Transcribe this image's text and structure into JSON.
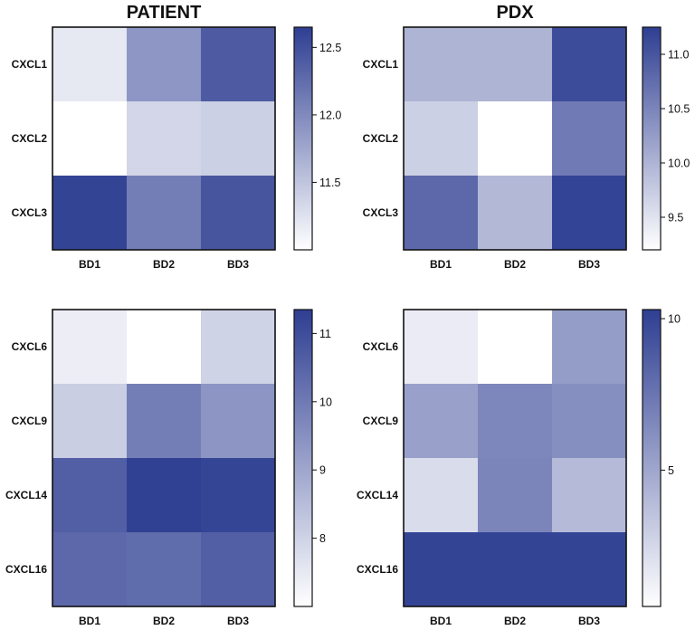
{
  "colors": {
    "low": "#ffffff",
    "high": "#2e3e92",
    "border": "#111111"
  },
  "chart_data": [
    {
      "type": "heatmap",
      "title": "PATIENT",
      "rows": [
        "CXCL1",
        "CXCL2",
        "CXCL3"
      ],
      "cols": [
        "BD1",
        "BD2",
        "BD3"
      ],
      "values": [
        [
          11.2,
          11.9,
          12.4
        ],
        [
          11.0,
          11.35,
          11.4
        ],
        [
          12.6,
          12.1,
          12.45
        ]
      ],
      "colorbar": {
        "min": 11.0,
        "max": 12.65,
        "ticks": [
          "12.5",
          "12.0",
          "11.5"
        ]
      }
    },
    {
      "type": "heatmap",
      "title": "PDX",
      "rows": [
        "CXCL1",
        "CXCL2",
        "CXCL3"
      ],
      "cols": [
        "BD1",
        "BD2",
        "BD3"
      ],
      "values": [
        [
          10.0,
          10.0,
          11.1
        ],
        [
          9.7,
          9.2,
          10.6
        ],
        [
          10.8,
          9.95,
          11.2
        ]
      ],
      "colorbar": {
        "min": 9.2,
        "max": 11.25,
        "ticks": [
          "11.0",
          "10.5",
          "10.0",
          "9.5"
        ]
      }
    },
    {
      "type": "heatmap",
      "title": "",
      "rows": [
        "CXCL6",
        "CXCL9",
        "CXCL14",
        "CXCL16"
      ],
      "cols": [
        "BD1",
        "BD2",
        "BD3"
      ],
      "values": [
        [
          7.4,
          7.0,
          8.0
        ],
        [
          8.1,
          9.9,
          9.4
        ],
        [
          10.6,
          11.3,
          11.2
        ],
        [
          10.4,
          10.3,
          10.6
        ]
      ],
      "colorbar": {
        "min": 7.0,
        "max": 11.35,
        "ticks": [
          "11",
          "10",
          "9",
          "8"
        ]
      }
    },
    {
      "type": "heatmap",
      "title": "",
      "rows": [
        "CXCL6",
        "CXCL9",
        "CXCL14",
        "CXCL16"
      ],
      "cols": [
        "BD1",
        "BD2",
        "BD3"
      ],
      "values": [
        [
          1.5,
          0.5,
          5.5
        ],
        [
          5.3,
          6.6,
          6.2
        ],
        [
          2.3,
          6.7,
          4.0
        ],
        [
          10.0,
          10.0,
          10.0
        ]
      ],
      "colorbar": {
        "min": 0.5,
        "max": 10.3,
        "ticks": [
          "10",
          "5"
        ]
      }
    }
  ]
}
